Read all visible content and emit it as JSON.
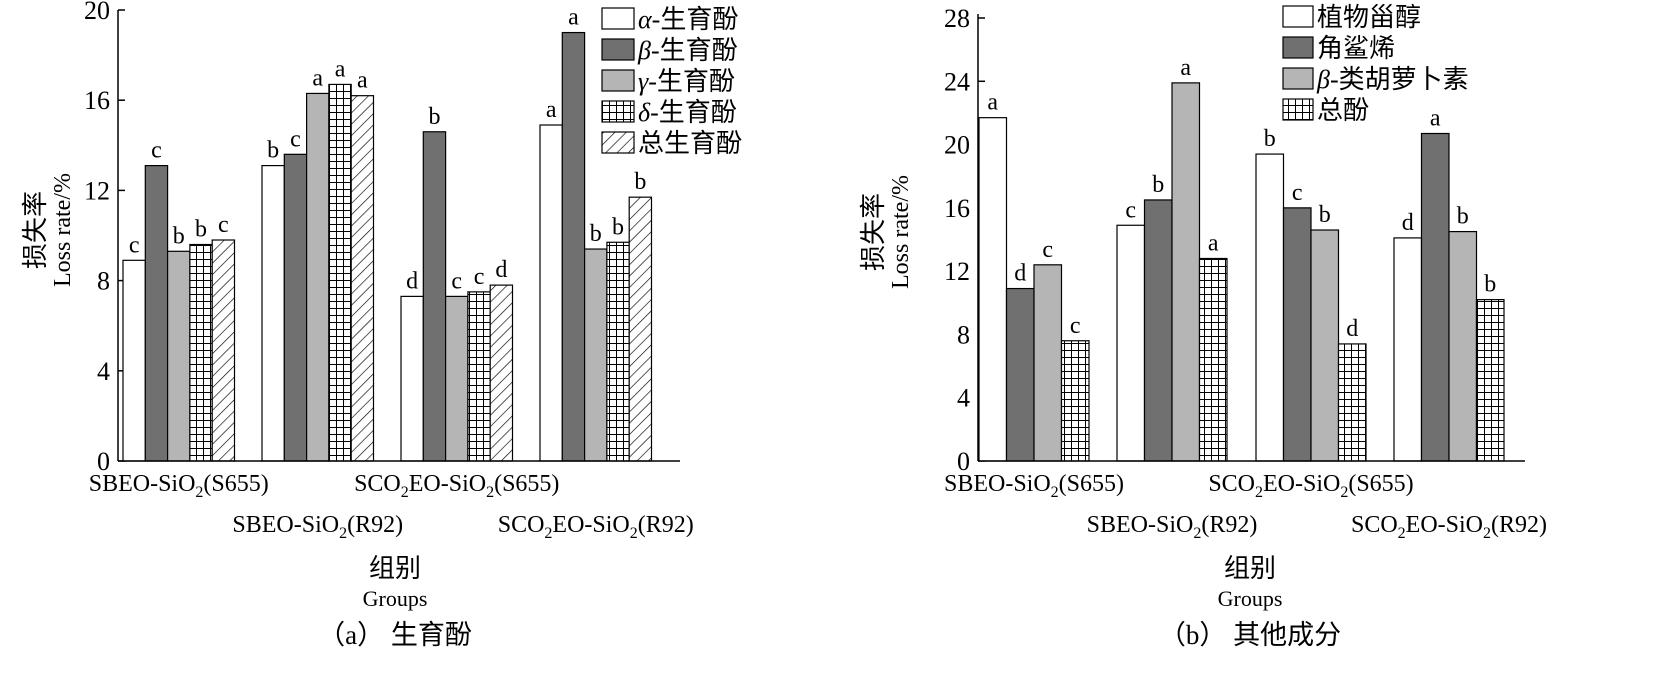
{
  "colors": {
    "white": "#ffffff",
    "dark_gray": "#707070",
    "light_gray": "#b5b5b5",
    "grid_pattern": "hatch-grid",
    "diagonal_pattern": "hatch-diagonal"
  },
  "chart_data": [
    {
      "type": "bar",
      "caption": "（a） 生育酚",
      "ylabel_cn": "损失率",
      "ylabel_en": "Loss rate/%",
      "xlabel_cn": "组别",
      "xlabel_en": "Groups",
      "ylim": [
        0,
        20
      ],
      "yticks": [
        0,
        4,
        8,
        12,
        16,
        20
      ],
      "legend_position": "top-right",
      "categories": [
        {
          "pre": "SBEO-SiO",
          "sub": "2",
          "post": "(S655)",
          "row": 1
        },
        {
          "pre": "SBEO-SiO",
          "sub": "2",
          "post": "(R92)",
          "row": 2
        },
        {
          "pre": "SCO",
          "sub": "2",
          "mid": "EO-SiO",
          "sub2": "2",
          "post": "(S655)",
          "row": 1
        },
        {
          "pre": "SCO",
          "sub": "2",
          "mid": "EO-SiO",
          "sub2": "2",
          "post": "(R92)",
          "row": 2
        }
      ],
      "series": [
        {
          "name_greek": "α",
          "name": "-生育酚",
          "fill": "white",
          "values": [
            8.9,
            13.1,
            7.3,
            14.9
          ],
          "letters": [
            "c",
            "b",
            "d",
            "a"
          ]
        },
        {
          "name_greek": "β",
          "name": "-生育酚",
          "fill": "dark_gray",
          "values": [
            13.1,
            13.6,
            14.6,
            19.0
          ],
          "letters": [
            "c",
            "c",
            "b",
            "a"
          ]
        },
        {
          "name_greek": "γ",
          "name": "-生育酚",
          "fill": "light_gray",
          "values": [
            9.3,
            16.3,
            7.3,
            9.4
          ],
          "letters": [
            "b",
            "a",
            "c",
            "b"
          ]
        },
        {
          "name_greek": "δ",
          "name": "-生育酚",
          "fill": "grid",
          "values": [
            9.6,
            16.7,
            7.5,
            9.7
          ],
          "letters": [
            "b",
            "a",
            "c",
            "b"
          ]
        },
        {
          "name_greek": "",
          "name": "总生育酚",
          "fill": "diagonal",
          "values": [
            9.8,
            16.2,
            7.8,
            11.7
          ],
          "letters": [
            "c",
            "a",
            "d",
            "b"
          ]
        }
      ]
    },
    {
      "type": "bar",
      "caption": "（b） 其他成分",
      "ylabel_cn": "损失率",
      "ylabel_en": "Loss rate/%",
      "xlabel_cn": "组别",
      "xlabel_en": "Groups",
      "ylim": [
        0,
        28
      ],
      "yticks": [
        0,
        4,
        8,
        12,
        16,
        20,
        24,
        28
      ],
      "legend_position": "top-right",
      "categories": [
        {
          "pre": "SBEO-SiO",
          "sub": "2",
          "post": "(S655)",
          "row": 1
        },
        {
          "pre": "SBEO-SiO",
          "sub": "2",
          "post": "(R92)",
          "row": 2
        },
        {
          "pre": "SCO",
          "sub": "2",
          "mid": "EO-SiO",
          "sub2": "2",
          "post": "(S655)",
          "row": 1
        },
        {
          "pre": "SCO",
          "sub": "2",
          "mid": "EO-SiO",
          "sub2": "2",
          "post": "(R92)",
          "row": 2
        }
      ],
      "series": [
        {
          "name_greek": "",
          "name": "植物甾醇",
          "fill": "white",
          "values": [
            21.7,
            14.9,
            19.4,
            14.1
          ],
          "letters": [
            "a",
            "c",
            "b",
            "d"
          ]
        },
        {
          "name_greek": "",
          "name": "角鲨烯",
          "fill": "dark_gray",
          "values": [
            10.9,
            16.5,
            16.0,
            20.7
          ],
          "letters": [
            "d",
            "b",
            "c",
            "a"
          ]
        },
        {
          "name_greek": "β",
          "name": "-类胡萝卜素",
          "fill": "light_gray",
          "values": [
            12.4,
            23.9,
            14.6,
            14.5
          ],
          "letters": [
            "c",
            "a",
            "b",
            "b"
          ]
        },
        {
          "name_greek": "",
          "name": "总酚",
          "fill": "grid",
          "values": [
            7.6,
            12.8,
            7.4,
            10.2
          ],
          "letters": [
            "c",
            "a",
            "d",
            "b"
          ]
        }
      ]
    }
  ]
}
